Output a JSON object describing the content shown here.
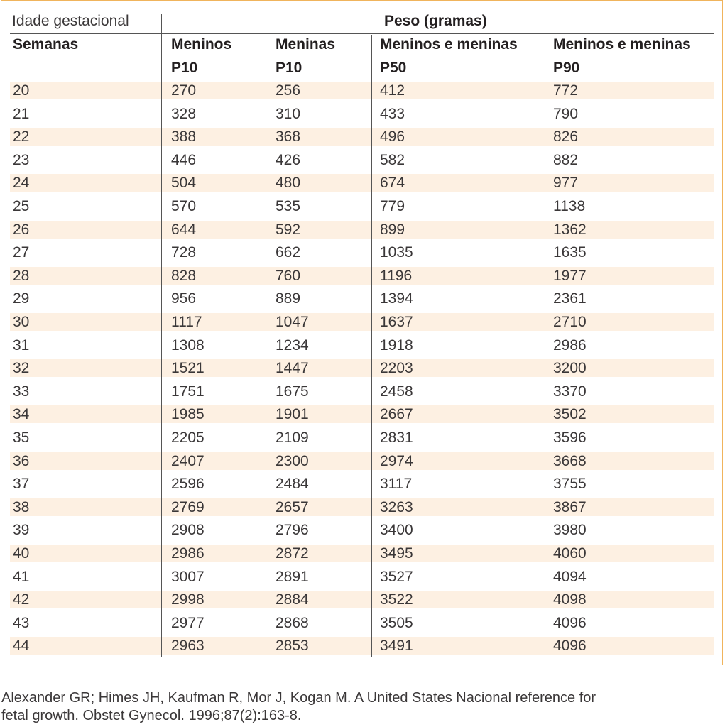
{
  "table": {
    "header": {
      "gestational_age": "Idade gestacional",
      "weight": "Peso (gramas)",
      "weeks": "Semanas",
      "boys_l1": "Meninos",
      "boys_l2": "P10",
      "girls_l1": "Meninas",
      "girls_l2": "P10",
      "both50_l1": "Meninos e meninas",
      "both50_l2": "P50",
      "both90_l1": "Meninos e meninas",
      "both90_l2": "P90"
    },
    "rows": [
      [
        "20",
        "270",
        "256",
        "412",
        "772"
      ],
      [
        "21",
        "328",
        "310",
        "433",
        "790"
      ],
      [
        "22",
        "388",
        "368",
        "496",
        "826"
      ],
      [
        "23",
        "446",
        "426",
        "582",
        "882"
      ],
      [
        "24",
        "504",
        "480",
        "674",
        "977"
      ],
      [
        "25",
        "570",
        "535",
        "779",
        "1138"
      ],
      [
        "26",
        "644",
        "592",
        "899",
        "1362"
      ],
      [
        "27",
        "728",
        "662",
        "1035",
        "1635"
      ],
      [
        "28",
        "828",
        "760",
        "1196",
        "1977"
      ],
      [
        "29",
        "956",
        "889",
        "1394",
        "2361"
      ],
      [
        "30",
        "1117",
        "1047",
        "1637",
        "2710"
      ],
      [
        "31",
        "1308",
        "1234",
        "1918",
        "2986"
      ],
      [
        "32",
        "1521",
        "1447",
        "2203",
        "3200"
      ],
      [
        "33",
        "1751",
        "1675",
        "2458",
        "3370"
      ],
      [
        "34",
        "1985",
        "1901",
        "2667",
        "3502"
      ],
      [
        "35",
        "2205",
        "2109",
        "2831",
        "3596"
      ],
      [
        "36",
        "2407",
        "2300",
        "2974",
        "3668"
      ],
      [
        "37",
        "2596",
        "2484",
        "3117",
        "3755"
      ],
      [
        "38",
        "2769",
        "2657",
        "3263",
        "3867"
      ],
      [
        "39",
        "2908",
        "2796",
        "3400",
        "3980"
      ],
      [
        "40",
        "2986",
        "2872",
        "3495",
        "4060"
      ],
      [
        "41",
        "3007",
        "2891",
        "3527",
        "4094"
      ],
      [
        "42",
        "2998",
        "2884",
        "3522",
        "4098"
      ],
      [
        "43",
        "2977",
        "2868",
        "3505",
        "4096"
      ],
      [
        "44",
        "2963",
        "2853",
        "3491",
        "4096"
      ]
    ]
  },
  "citation": {
    "line1": "Alexander GR; Himes JH, Kaufman R, Mor J, Kogan M. A United States Nacional reference for",
    "line2": "fetal growth. Obstet Gynecol. 1996;87(2):163-8."
  },
  "colors": {
    "border": "#f0b45c",
    "row_shade": "#fdf0e2",
    "text": "#231f20"
  }
}
